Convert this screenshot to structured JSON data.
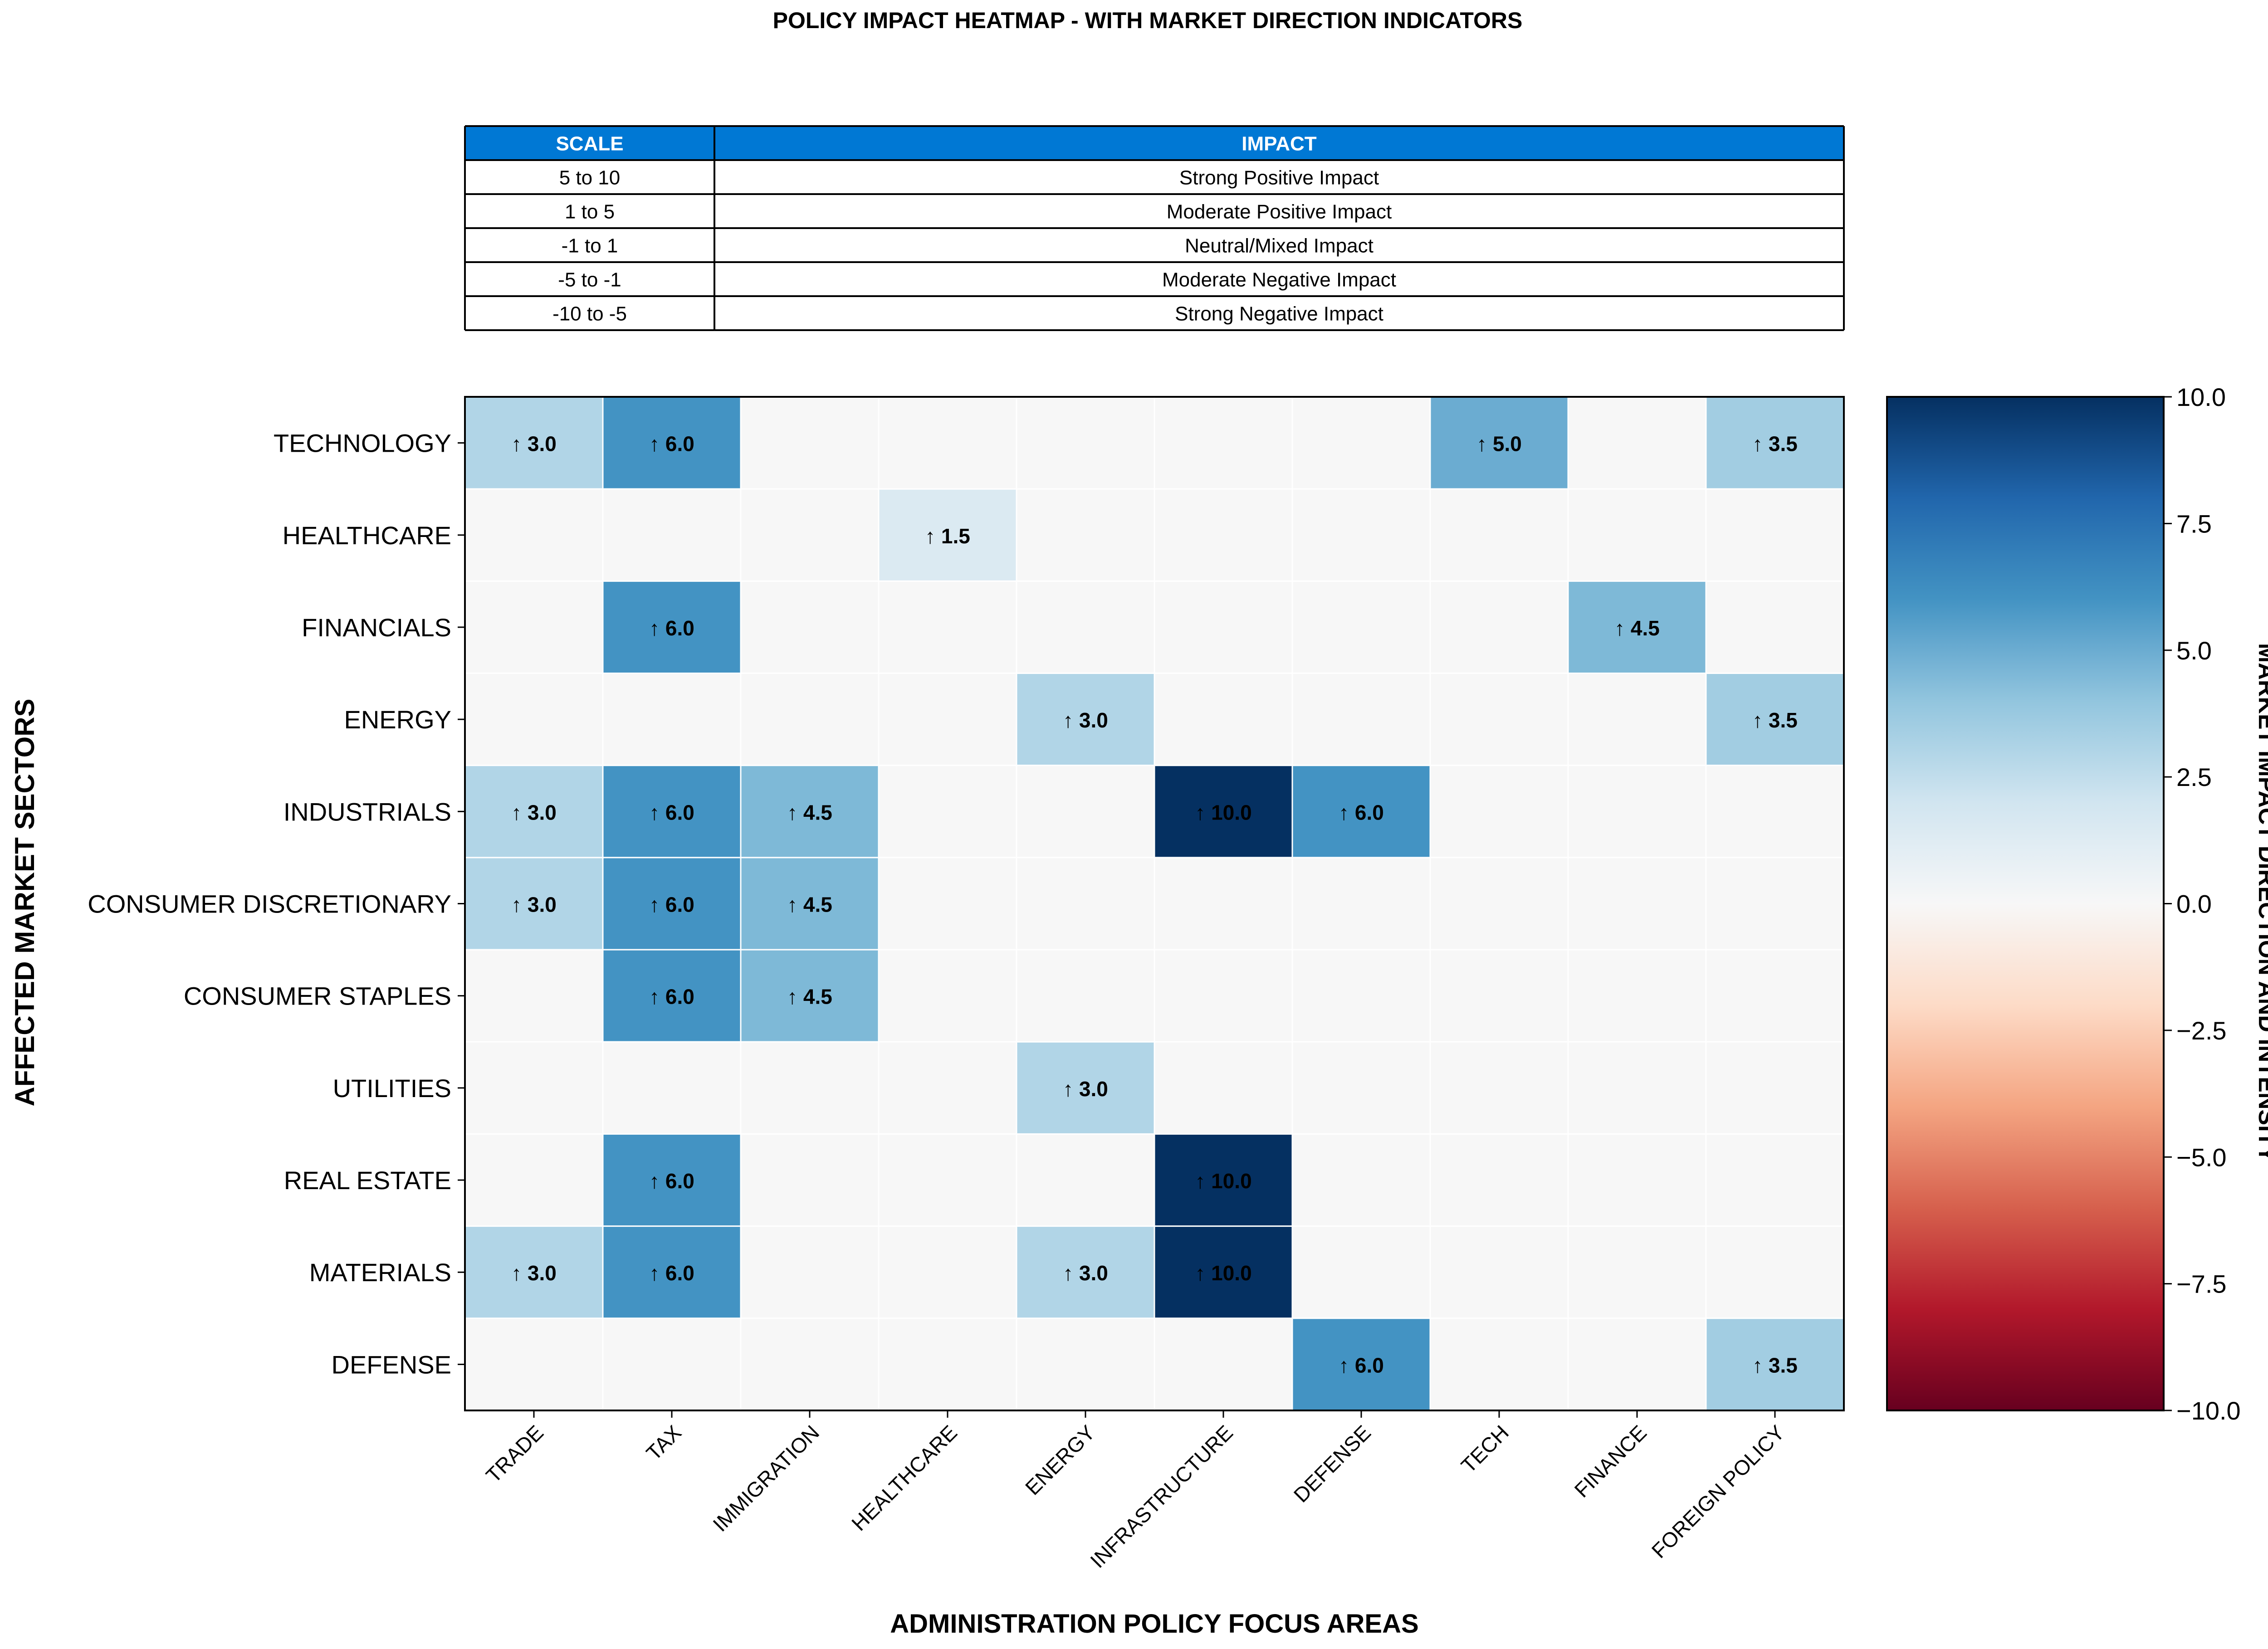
{
  "chart_data": {
    "type": "heatmap",
    "title": "POLICY IMPACT HEATMAP - WITH MARKET DIRECTION INDICATORS",
    "xlabel": "ADMINISTRATION POLICY FOCUS AREAS",
    "ylabel": "AFFECTED MARKET SECTORS",
    "x": [
      "TRADE",
      "TAX",
      "IMMIGRATION",
      "HEALTHCARE",
      "ENERGY",
      "INFRASTRUCTURE",
      "DEFENSE",
      "TECH",
      "FINANCE",
      "FOREIGN POLICY"
    ],
    "y": [
      "TECHNOLOGY",
      "HEALTHCARE",
      "FINANCIALS",
      "ENERGY",
      "INDUSTRIALS",
      "CONSUMER DISCRETIONARY",
      "CONSUMER STAPLES",
      "UTILITIES",
      "REAL ESTATE",
      "MATERIALS",
      "DEFENSE"
    ],
    "values": [
      [
        3.0,
        6.0,
        0,
        0,
        0,
        0,
        0,
        5.0,
        0,
        3.5
      ],
      [
        0,
        0,
        0,
        1.5,
        0,
        0,
        0,
        0,
        0,
        0
      ],
      [
        0,
        6.0,
        0,
        0,
        0,
        0,
        0,
        0,
        4.5,
        0
      ],
      [
        0,
        0,
        0,
        0,
        3.0,
        0,
        0,
        0,
        0,
        3.5
      ],
      [
        3.0,
        6.0,
        4.5,
        0,
        0,
        10.0,
        6.0,
        0,
        0,
        0
      ],
      [
        3.0,
        6.0,
        4.5,
        0,
        0,
        0,
        0,
        0,
        0,
        0
      ],
      [
        0,
        6.0,
        4.5,
        0,
        0,
        0,
        0,
        0,
        0,
        0
      ],
      [
        0,
        0,
        0,
        0,
        3.0,
        0,
        0,
        0,
        0,
        0
      ],
      [
        0,
        6.0,
        0,
        0,
        0,
        10.0,
        0,
        0,
        0,
        0
      ],
      [
        3.0,
        6.0,
        0,
        0,
        3.0,
        10.0,
        0,
        0,
        0,
        0
      ],
      [
        0,
        0,
        0,
        0,
        0,
        0,
        6.0,
        0,
        0,
        3.5
      ]
    ],
    "direction_symbol": "↑",
    "colorscale": "RdBu",
    "vmin": -10,
    "vmax": 10,
    "colorbar": {
      "label": "MARKET IMPACT DIRECTION AND INTENSITY",
      "ticks": [
        "10.0",
        "7.5",
        "5.0",
        "2.5",
        "0.0",
        "−2.5",
        "−5.0",
        "−7.5",
        "−10.0"
      ],
      "tick_values": [
        10,
        7.5,
        5,
        2.5,
        0,
        -2.5,
        -5,
        -7.5,
        -10
      ]
    },
    "grid": true
  },
  "legend_table": {
    "header_color": "#0078d4",
    "columns": [
      "SCALE",
      "IMPACT"
    ],
    "rows": [
      [
        "5 to 10",
        "Strong Positive Impact"
      ],
      [
        "1 to 5",
        "Moderate Positive Impact"
      ],
      [
        "-1 to 1",
        "Neutral/Mixed Impact"
      ],
      [
        "-5 to -1",
        "Moderate Negative Impact"
      ],
      [
        "-10 to -5",
        "Strong Negative Impact"
      ]
    ]
  }
}
